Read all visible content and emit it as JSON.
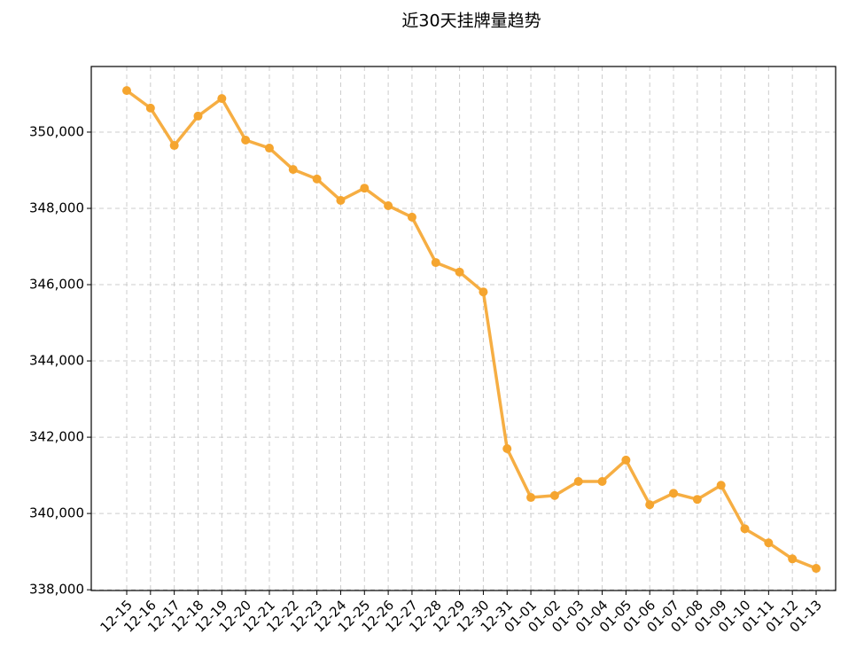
{
  "chart_data": {
    "type": "line",
    "title": "近30天挂牌量趋势",
    "categories": [
      "12-15",
      "12-16",
      "12-17",
      "12-18",
      "12-19",
      "12-20",
      "12-21",
      "12-22",
      "12-23",
      "12-24",
      "12-25",
      "12-26",
      "12-27",
      "12-28",
      "12-29",
      "12-30",
      "12-31",
      "01-01",
      "01-02",
      "01-03",
      "01-04",
      "01-05",
      "01-06",
      "01-07",
      "01-08",
      "01-09",
      "01-10",
      "01-11",
      "01-12",
      "01-13"
    ],
    "values": [
      351090,
      350630,
      349650,
      350420,
      350880,
      349790,
      349580,
      349020,
      348770,
      348210,
      348530,
      348070,
      347770,
      346580,
      346330,
      345810,
      341700,
      340420,
      340470,
      340840,
      340840,
      341400,
      340230,
      340530,
      340370,
      340740,
      339600,
      339230,
      338810,
      338560
    ],
    "color": "#f5a52f",
    "ylim": [
      337980,
      351720
    ],
    "yticks": [
      {
        "value": 338000,
        "label": "338,000"
      },
      {
        "value": 340000,
        "label": "340,000"
      },
      {
        "value": 342000,
        "label": "342,000"
      },
      {
        "value": 344000,
        "label": "344,000"
      },
      {
        "value": 346000,
        "label": "346,000"
      },
      {
        "value": 348000,
        "label": "348,000"
      },
      {
        "value": 350000,
        "label": "350,000"
      }
    ],
    "grid": true
  }
}
